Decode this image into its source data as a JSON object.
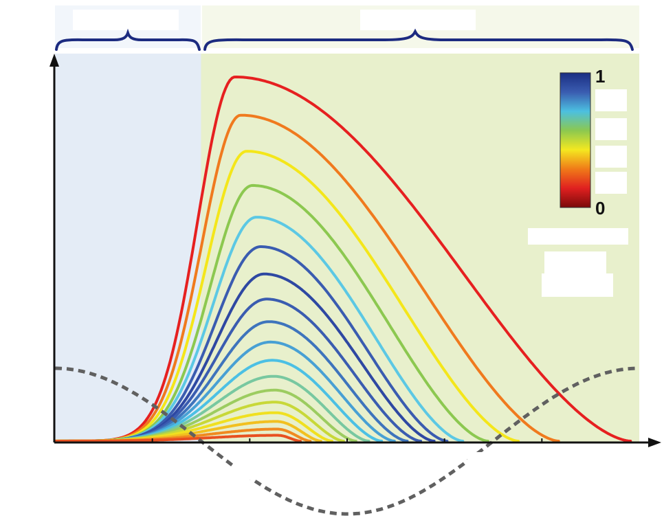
{
  "chart_data": {
    "type": "line",
    "title": "",
    "xlabel": "",
    "ylabel": "",
    "grid": false,
    "legend": "none",
    "x_range": [
      0,
      1
    ],
    "y_range": [
      0,
      1
    ],
    "regions": [
      {
        "x_range": [
          0,
          0.25
        ],
        "color": "#e4ecf6"
      },
      {
        "x_range": [
          0.25,
          1.0
        ],
        "color": "#e8f0cc"
      }
    ],
    "colorbar": {
      "min_label": "0",
      "max_label": "1",
      "colors": [
        "#7a0a0a",
        "#e02020",
        "#f07a18",
        "#f4e820",
        "#8cc850",
        "#4cc0e0",
        "#3a5cb0",
        "#1a2e82"
      ]
    },
    "series_colors": [
      "#e62020",
      "#f07a1e",
      "#f4e61a",
      "#8cc850",
      "#5cc8e4",
      "#3a5cb0",
      "#2e48a2",
      "#3a5cb0",
      "#3e74bc",
      "#48a0d4",
      "#4cc0e4",
      "#78c8a0",
      "#9ccc60",
      "#c8d838",
      "#f0e020",
      "#f2c020",
      "#f08a20",
      "#e85020"
    ],
    "series": [
      {
        "peak_x": 0.308,
        "peak_y": 1.0,
        "end_x": 0.985
      },
      {
        "peak_x": 0.318,
        "peak_y": 0.895,
        "end_x": 0.862
      },
      {
        "peak_x": 0.328,
        "peak_y": 0.796,
        "end_x": 0.793
      },
      {
        "peak_x": 0.338,
        "peak_y": 0.702,
        "end_x": 0.741
      },
      {
        "peak_x": 0.345,
        "peak_y": 0.615,
        "end_x": 0.698
      },
      {
        "peak_x": 0.352,
        "peak_y": 0.534,
        "end_x": 0.671
      },
      {
        "peak_x": 0.358,
        "peak_y": 0.459,
        "end_x": 0.649
      },
      {
        "peak_x": 0.362,
        "peak_y": 0.39,
        "end_x": 0.626
      },
      {
        "peak_x": 0.366,
        "peak_y": 0.328,
        "end_x": 0.603
      },
      {
        "peak_x": 0.369,
        "peak_y": 0.272,
        "end_x": 0.581
      },
      {
        "peak_x": 0.372,
        "peak_y": 0.222,
        "end_x": 0.559
      },
      {
        "peak_x": 0.374,
        "peak_y": 0.178,
        "end_x": 0.537
      },
      {
        "peak_x": 0.376,
        "peak_y": 0.14,
        "end_x": 0.515
      },
      {
        "peak_x": 0.377,
        "peak_y": 0.107,
        "end_x": 0.494
      },
      {
        "peak_x": 0.378,
        "peak_y": 0.078,
        "end_x": 0.474
      },
      {
        "peak_x": 0.379,
        "peak_y": 0.054,
        "end_x": 0.455
      },
      {
        "peak_x": 0.38,
        "peak_y": 0.033,
        "end_x": 0.437
      },
      {
        "peak_x": 0.381,
        "peak_y": 0.016,
        "end_x": 0.42
      }
    ],
    "dashed_curve": {
      "amplitude": 0.2,
      "period_x": 1.0,
      "color": "#606060"
    }
  }
}
